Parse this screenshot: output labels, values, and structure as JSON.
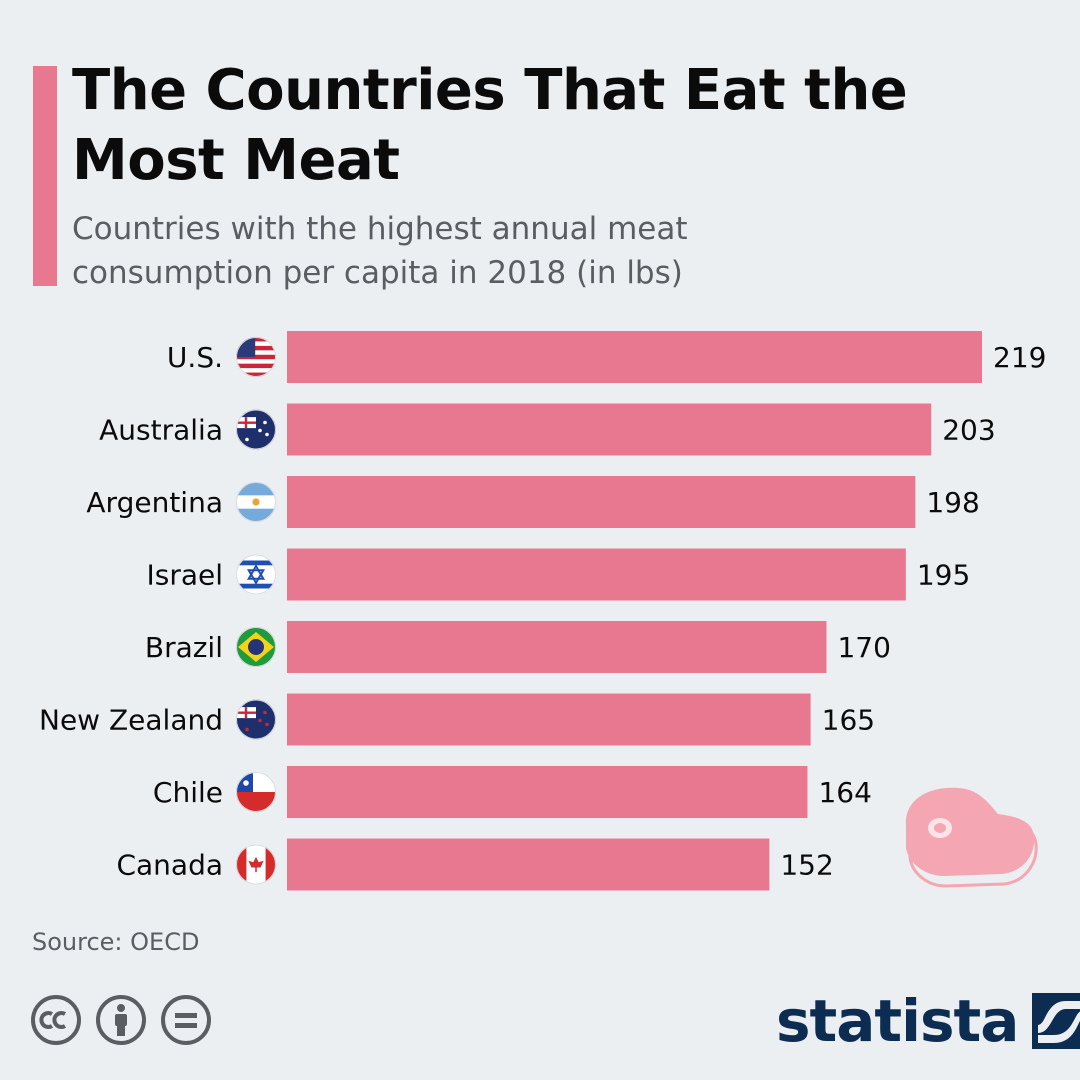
{
  "header": {
    "title": "The Countries That Eat the Most Meat",
    "subtitle": "Countries with the highest annual meat consumption per capita in 2018 (in lbs)"
  },
  "chart_data": {
    "type": "bar",
    "orientation": "horizontal",
    "title": "The Countries That Eat the Most Meat",
    "subtitle": "Countries with the highest annual meat consumption per capita in 2018 (in lbs)",
    "categories": [
      "U.S.",
      "Australia",
      "Argentina",
      "Israel",
      "Brazil",
      "New Zealand",
      "Chile",
      "Canada"
    ],
    "values": [
      219,
      203,
      198,
      195,
      170,
      165,
      164,
      152
    ],
    "flags": [
      "us-flag-icon",
      "australia-flag-icon",
      "argentina-flag-icon",
      "israel-flag-icon",
      "brazil-flag-icon",
      "new-zealand-flag-icon",
      "chile-flag-icon",
      "canada-flag-icon"
    ],
    "bar_color": "#e8788f",
    "xlim": [
      0,
      219
    ],
    "grid": false,
    "data_labels": true
  },
  "footer": {
    "source": "Source: OECD",
    "license_icons": [
      "cc-icon",
      "attribution-icon",
      "no-derivatives-icon"
    ],
    "brand": "statista"
  },
  "colors": {
    "accent": "#e8788f",
    "background": "#eceff2",
    "title": "#0b0b0b",
    "subtitle": "#5a5e63",
    "brand": "#0d2c52",
    "steak": "#f4a6b2"
  },
  "decoration": {
    "steak_icon": "steak-icon"
  }
}
